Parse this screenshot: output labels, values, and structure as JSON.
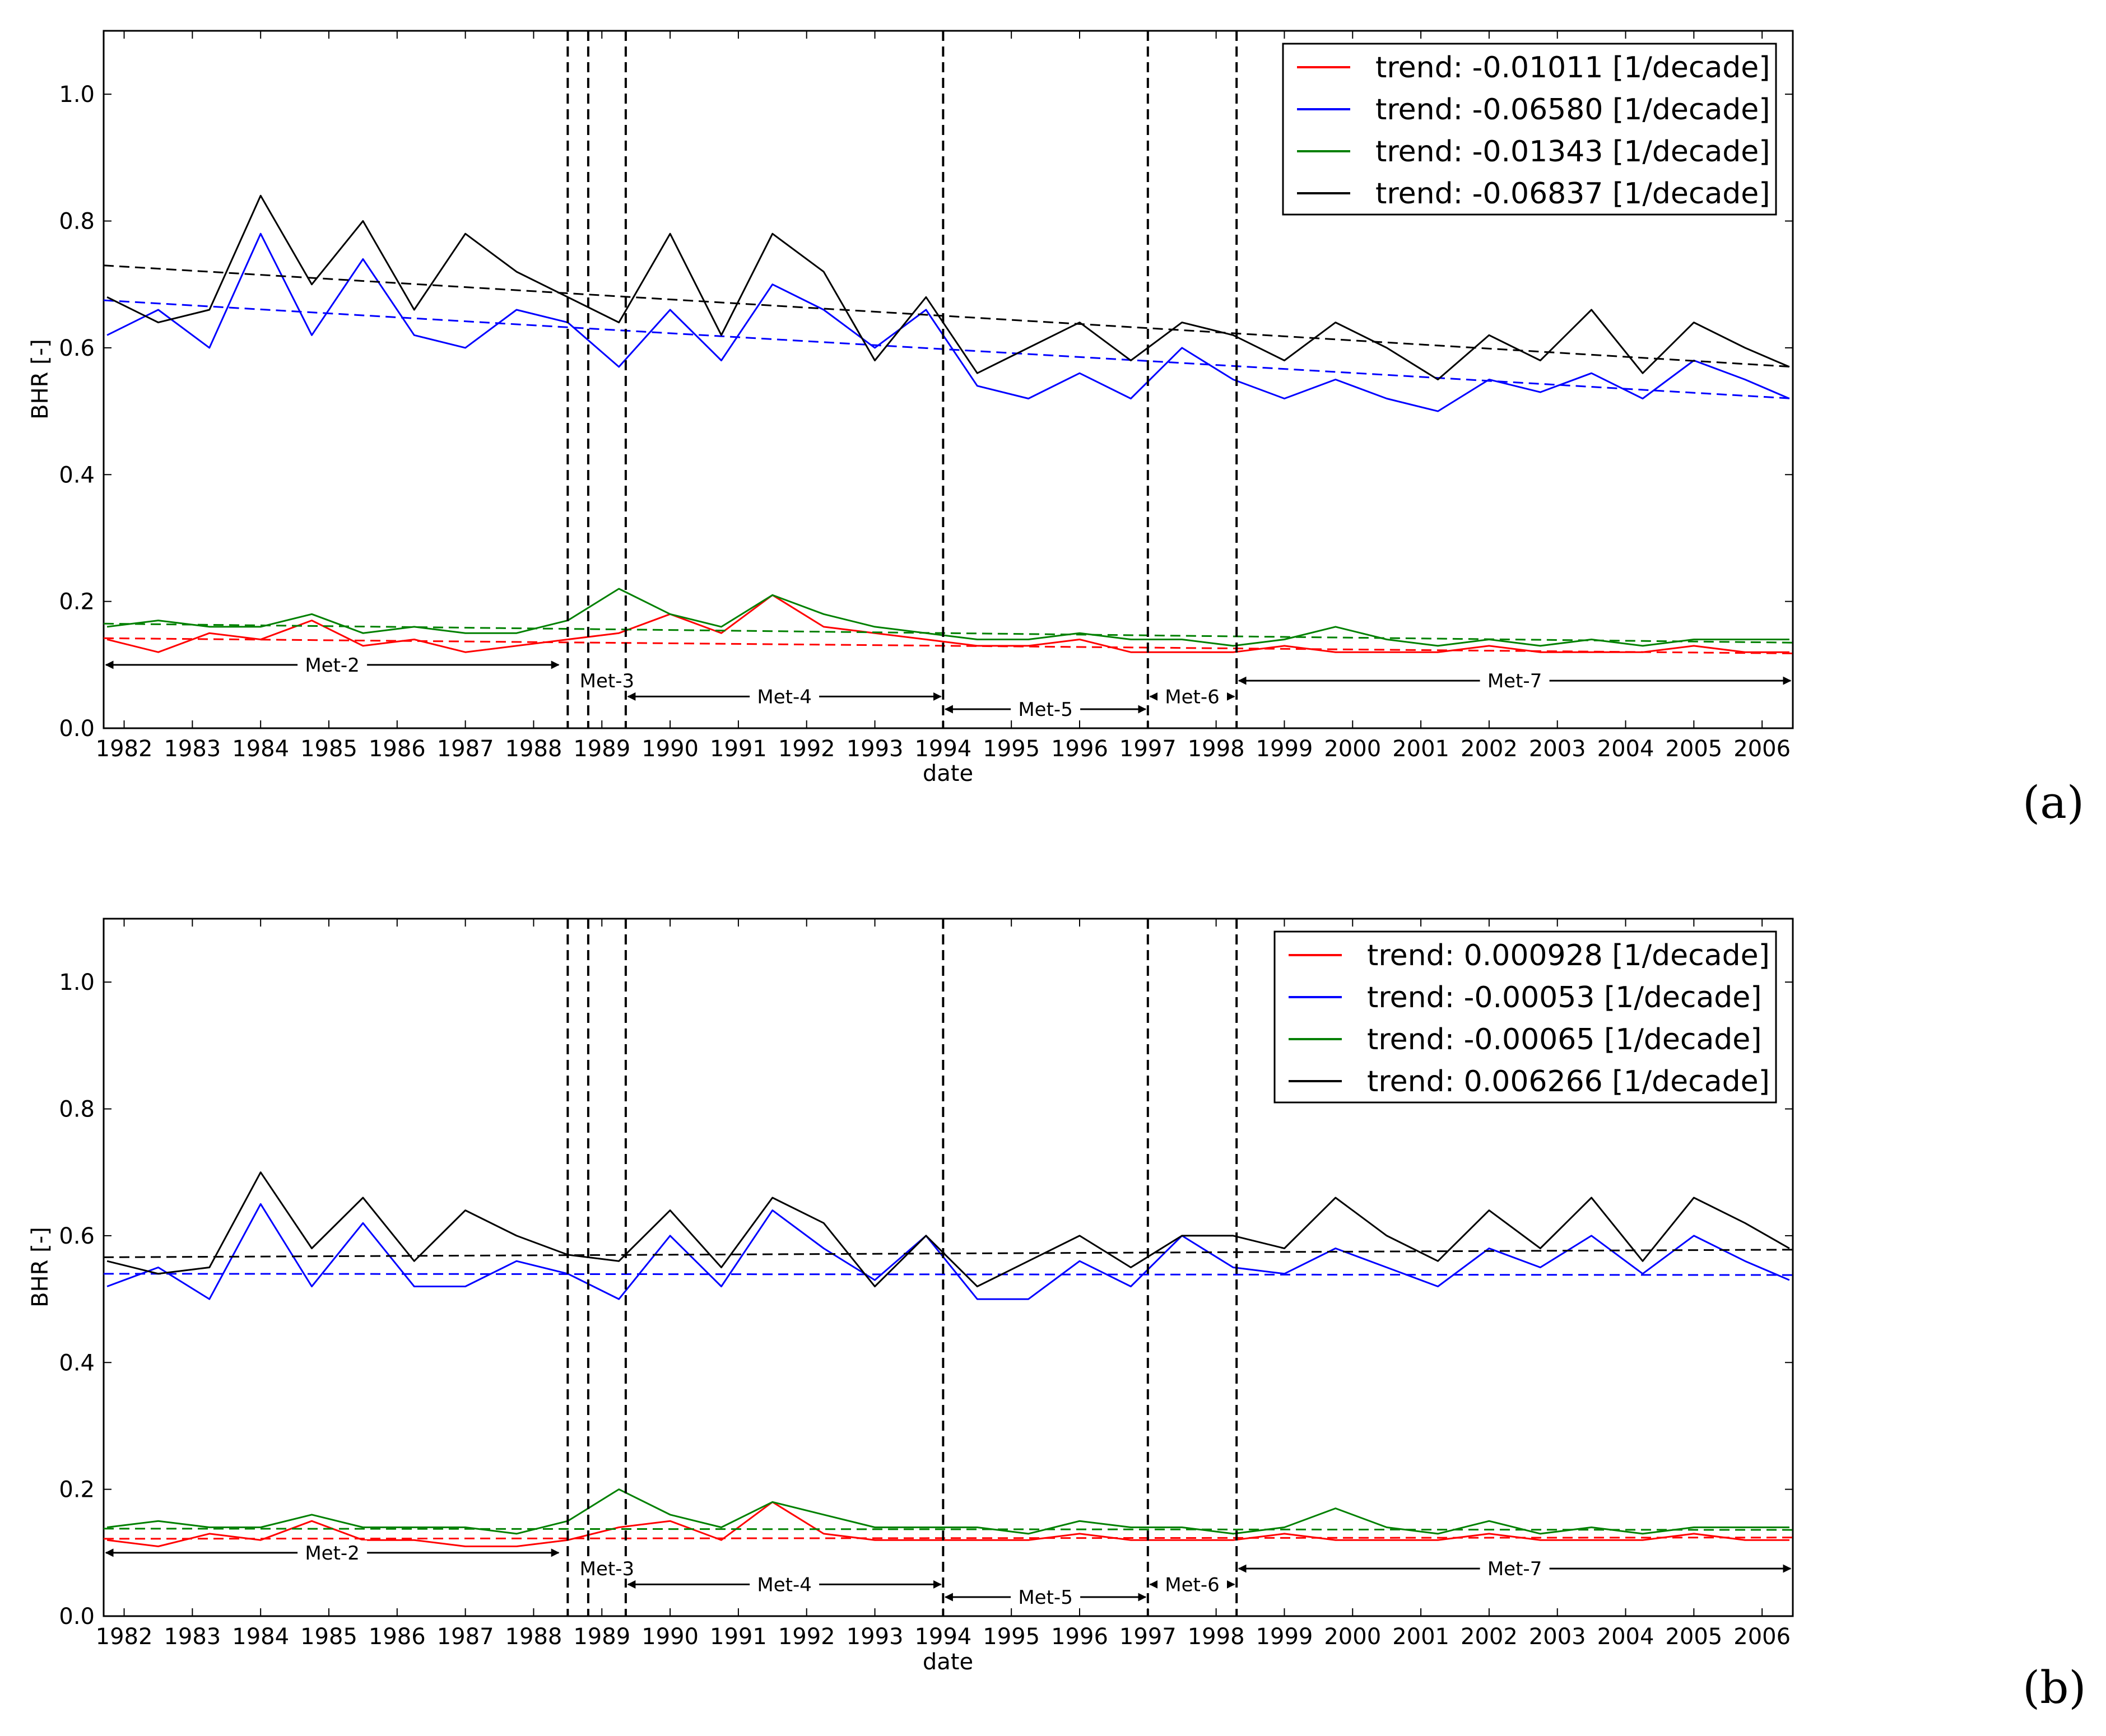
{
  "colors": {
    "red": "#ff0000",
    "blue": "#0000ff",
    "green": "#008000",
    "black": "#000000"
  },
  "chart_data": [
    {
      "type": "line",
      "panel_label": "(a)",
      "xlabel": "date",
      "ylabel": "BHR [-]",
      "xlim": [
        1981.7,
        2006.45
      ],
      "ylim": [
        0.0,
        1.1
      ],
      "yticks": [
        "0.0",
        "0.2",
        "0.4",
        "0.6",
        "0.8",
        "1.0"
      ],
      "xticks": [
        "1982",
        "1983",
        "1984",
        "1985",
        "1986",
        "1987",
        "1988",
        "1989",
        "1990",
        "1991",
        "1992",
        "1993",
        "1994",
        "1995",
        "1996",
        "1997",
        "1998",
        "1999",
        "2000",
        "2001",
        "2002",
        "2003",
        "2004",
        "2005",
        "2006"
      ],
      "legend_position": "top-right",
      "x": [
        1981.75,
        1982.5,
        1983.25,
        1984.0,
        1984.75,
        1985.5,
        1986.25,
        1987.0,
        1987.75,
        1988.5,
        1989.25,
        1990.0,
        1990.75,
        1991.5,
        1992.25,
        1993.0,
        1993.75,
        1994.5,
        1995.25,
        1996.0,
        1996.75,
        1997.5,
        1998.25,
        1999.0,
        1999.75,
        2000.5,
        2001.25,
        2002.0,
        2002.75,
        2003.5,
        2004.25,
        2005.0,
        2005.75,
        2006.4
      ],
      "series": [
        {
          "name": "trend: -0.01011 [1/decade]",
          "color": "red",
          "values": [
            0.14,
            0.12,
            0.15,
            0.14,
            0.17,
            0.13,
            0.14,
            0.12,
            0.13,
            0.14,
            0.15,
            0.18,
            0.15,
            0.21,
            0.16,
            0.15,
            0.14,
            0.13,
            0.13,
            0.14,
            0.12,
            0.12,
            0.12,
            0.13,
            0.12,
            0.12,
            0.12,
            0.13,
            0.12,
            0.12,
            0.12,
            0.13,
            0.12,
            0.12
          ],
          "trend": [
            0.142,
            0.118
          ]
        },
        {
          "name": "trend: -0.06580 [1/decade]",
          "color": "blue",
          "values": [
            0.62,
            0.66,
            0.6,
            0.78,
            0.62,
            0.74,
            0.62,
            0.6,
            0.66,
            0.64,
            0.57,
            0.66,
            0.58,
            0.7,
            0.66,
            0.6,
            0.66,
            0.54,
            0.52,
            0.56,
            0.52,
            0.6,
            0.55,
            0.52,
            0.55,
            0.52,
            0.5,
            0.55,
            0.53,
            0.56,
            0.52,
            0.58,
            0.55,
            0.52
          ],
          "trend": [
            0.675,
            0.52
          ]
        },
        {
          "name": "trend: -0.01343 [1/decade]",
          "color": "green",
          "values": [
            0.16,
            0.17,
            0.16,
            0.16,
            0.18,
            0.15,
            0.16,
            0.15,
            0.15,
            0.17,
            0.22,
            0.18,
            0.16,
            0.21,
            0.18,
            0.16,
            0.15,
            0.14,
            0.14,
            0.15,
            0.14,
            0.14,
            0.13,
            0.14,
            0.16,
            0.14,
            0.13,
            0.14,
            0.13,
            0.14,
            0.13,
            0.14,
            0.14,
            0.14
          ],
          "trend": [
            0.165,
            0.135
          ]
        },
        {
          "name": "trend: -0.06837 [1/decade]",
          "color": "black",
          "values": [
            0.68,
            0.64,
            0.66,
            0.84,
            0.7,
            0.8,
            0.66,
            0.78,
            0.72,
            0.68,
            0.64,
            0.78,
            0.62,
            0.78,
            0.72,
            0.58,
            0.68,
            0.56,
            0.6,
            0.64,
            0.58,
            0.64,
            0.62,
            0.58,
            0.64,
            0.6,
            0.55,
            0.62,
            0.58,
            0.66,
            0.56,
            0.64,
            0.6,
            0.57
          ],
          "trend": [
            0.73,
            0.57
          ]
        }
      ],
      "vertical_dashed_lines": [
        1988.5,
        1988.8,
        1989.35,
        1994.0,
        1997.0,
        1998.3
      ],
      "annotations": [
        {
          "label": "Met-2",
          "x0": 1981.7,
          "x1": 1988.4,
          "y": 0.1
        },
        {
          "label": "Met-3",
          "x0": 1988.8,
          "x1": 1989.35,
          "y": 0.075
        },
        {
          "label": "Met-4",
          "x0": 1989.35,
          "x1": 1994.0,
          "y": 0.05
        },
        {
          "label": "Met-5",
          "x0": 1994.0,
          "x1": 1997.0,
          "y": 0.03
        },
        {
          "label": "Met-6",
          "x0": 1997.0,
          "x1": 1998.3,
          "y": 0.05
        },
        {
          "label": "Met-7",
          "x0": 1998.3,
          "x1": 2006.45,
          "y": 0.075
        }
      ]
    },
    {
      "type": "line",
      "panel_label": "(b)",
      "xlabel": "date",
      "ylabel": "BHR [-]",
      "xlim": [
        1981.7,
        2006.45
      ],
      "ylim": [
        0.0,
        1.1
      ],
      "yticks": [
        "0.0",
        "0.2",
        "0.4",
        "0.6",
        "0.8",
        "1.0"
      ],
      "xticks": [
        "1982",
        "1983",
        "1984",
        "1985",
        "1986",
        "1987",
        "1988",
        "1989",
        "1990",
        "1991",
        "1992",
        "1993",
        "1994",
        "1995",
        "1996",
        "1997",
        "1998",
        "1999",
        "2000",
        "2001",
        "2002",
        "2003",
        "2004",
        "2005",
        "2006"
      ],
      "legend_position": "top-right",
      "x": [
        1981.75,
        1982.5,
        1983.25,
        1984.0,
        1984.75,
        1985.5,
        1986.25,
        1987.0,
        1987.75,
        1988.5,
        1989.25,
        1990.0,
        1990.75,
        1991.5,
        1992.25,
        1993.0,
        1993.75,
        1994.5,
        1995.25,
        1996.0,
        1996.75,
        1997.5,
        1998.25,
        1999.0,
        1999.75,
        2000.5,
        2001.25,
        2002.0,
        2002.75,
        2003.5,
        2004.25,
        2005.0,
        2005.75,
        2006.4
      ],
      "series": [
        {
          "name": "trend: 0.000928 [1/decade]",
          "color": "red",
          "values": [
            0.12,
            0.11,
            0.13,
            0.12,
            0.15,
            0.12,
            0.12,
            0.11,
            0.11,
            0.12,
            0.14,
            0.15,
            0.12,
            0.18,
            0.13,
            0.12,
            0.12,
            0.12,
            0.12,
            0.13,
            0.12,
            0.12,
            0.12,
            0.13,
            0.12,
            0.12,
            0.12,
            0.13,
            0.12,
            0.12,
            0.12,
            0.13,
            0.12,
            0.12
          ],
          "trend": [
            0.122,
            0.124
          ]
        },
        {
          "name": "trend: -0.00053 [1/decade]",
          "color": "blue",
          "values": [
            0.52,
            0.55,
            0.5,
            0.65,
            0.52,
            0.62,
            0.52,
            0.52,
            0.56,
            0.54,
            0.5,
            0.6,
            0.52,
            0.64,
            0.58,
            0.53,
            0.6,
            0.5,
            0.5,
            0.56,
            0.52,
            0.6,
            0.55,
            0.54,
            0.58,
            0.55,
            0.52,
            0.58,
            0.55,
            0.6,
            0.54,
            0.6,
            0.56,
            0.53
          ],
          "trend": [
            0.54,
            0.538
          ]
        },
        {
          "name": "trend: -0.00065 [1/decade]",
          "color": "green",
          "values": [
            0.14,
            0.15,
            0.14,
            0.14,
            0.16,
            0.14,
            0.14,
            0.14,
            0.13,
            0.15,
            0.2,
            0.16,
            0.14,
            0.18,
            0.16,
            0.14,
            0.14,
            0.14,
            0.13,
            0.15,
            0.14,
            0.14,
            0.13,
            0.14,
            0.17,
            0.14,
            0.13,
            0.15,
            0.13,
            0.14,
            0.13,
            0.14,
            0.14,
            0.14
          ],
          "trend": [
            0.138,
            0.136
          ]
        },
        {
          "name": "trend: 0.006266 [1/decade]",
          "color": "black",
          "values": [
            0.56,
            0.54,
            0.55,
            0.7,
            0.58,
            0.66,
            0.56,
            0.64,
            0.6,
            0.57,
            0.56,
            0.64,
            0.55,
            0.66,
            0.62,
            0.52,
            0.6,
            0.52,
            0.56,
            0.6,
            0.55,
            0.6,
            0.6,
            0.58,
            0.66,
            0.6,
            0.56,
            0.64,
            0.58,
            0.66,
            0.56,
            0.66,
            0.62,
            0.58
          ],
          "trend": [
            0.566,
            0.578
          ]
        }
      ],
      "vertical_dashed_lines": [
        1988.5,
        1988.8,
        1989.35,
        1994.0,
        1997.0,
        1998.3
      ],
      "annotations": [
        {
          "label": "Met-2",
          "x0": 1981.7,
          "x1": 1988.4,
          "y": 0.1
        },
        {
          "label": "Met-3",
          "x0": 1988.8,
          "x1": 1989.35,
          "y": 0.075
        },
        {
          "label": "Met-4",
          "x0": 1989.35,
          "x1": 1994.0,
          "y": 0.05
        },
        {
          "label": "Met-5",
          "x0": 1994.0,
          "x1": 1997.0,
          "y": 0.03
        },
        {
          "label": "Met-6",
          "x0": 1997.0,
          "x1": 1998.3,
          "y": 0.05
        },
        {
          "label": "Met-7",
          "x0": 1998.3,
          "x1": 2006.45,
          "y": 0.075
        }
      ]
    }
  ]
}
